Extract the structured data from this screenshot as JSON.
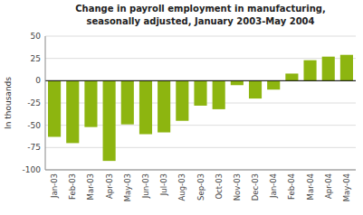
{
  "chart_data": {
    "type": "bar",
    "title": "Change in payroll employment in manufacturing,",
    "subtitle": "seasonally adjusted, January 2003-May 2004",
    "categories": [
      "Jan-03",
      "Feb-03",
      "Mar-03",
      "Apr-03",
      "May-03",
      "Jun-03",
      "Jul-03",
      "Aug-03",
      "Sep-03",
      "Oct-03",
      "Nov-03",
      "Dec-03",
      "Jan-04",
      "Feb-04",
      "Mar-04",
      "Apr-04",
      "May-04"
    ],
    "values": [
      -63,
      -70,
      -52,
      -90,
      -49,
      -60,
      -58,
      -45,
      -28,
      -32,
      -5,
      -20,
      -10,
      8,
      23,
      27,
      29
    ],
    "color": "#8db510",
    "y_label": "In thousands",
    "ylim": [
      -100,
      50
    ],
    "yticks": [
      -100,
      -75,
      -50,
      -25,
      0,
      25,
      50
    ],
    "grid": true
  }
}
